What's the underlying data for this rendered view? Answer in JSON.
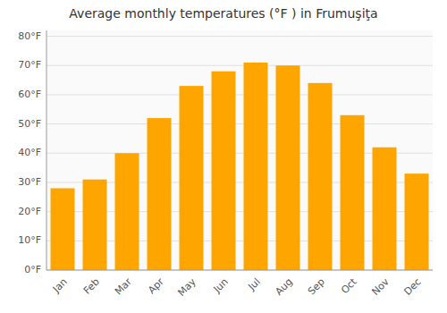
{
  "chart_data": {
    "type": "bar",
    "title": "Average monthly temperatures (°F ) in Frumuşiţa",
    "categories": [
      "Jan",
      "Feb",
      "Mar",
      "Apr",
      "May",
      "Jun",
      "Jul",
      "Aug",
      "Sep",
      "Oct",
      "Nov",
      "Dec"
    ],
    "values": [
      28,
      31,
      40,
      52,
      63,
      68,
      71,
      70,
      64,
      53,
      42,
      33
    ],
    "color": "#FFA500",
    "ylim": [
      0,
      82
    ],
    "yticks": [
      {
        "value": 0,
        "label": "0°F"
      },
      {
        "value": 10,
        "label": "10°F"
      },
      {
        "value": 20,
        "label": "20°F"
      },
      {
        "value": 30,
        "label": "30°F"
      },
      {
        "value": 40,
        "label": "40°F"
      },
      {
        "value": 50,
        "label": "50°F"
      },
      {
        "value": 60,
        "label": "60°F"
      },
      {
        "value": 70,
        "label": "70°F"
      },
      {
        "value": 80,
        "label": "80°F"
      }
    ],
    "grid": true
  }
}
